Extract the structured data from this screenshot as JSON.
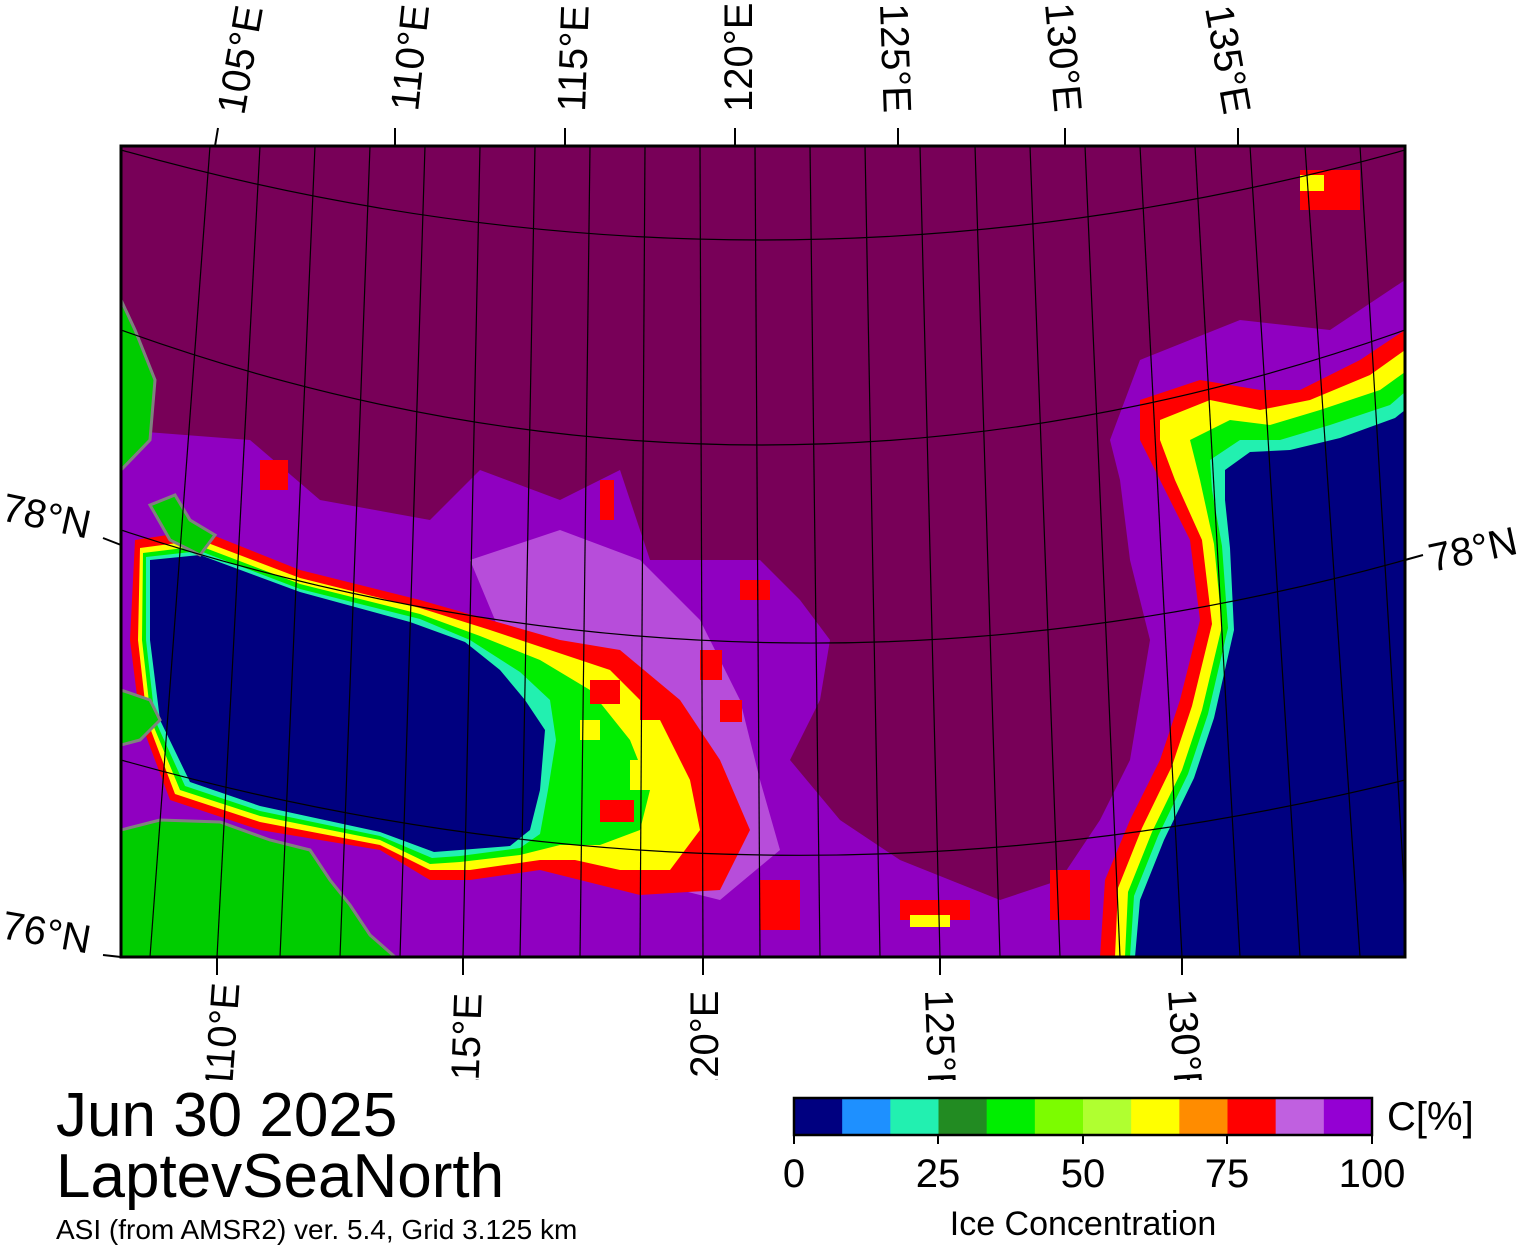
{
  "map": {
    "date": "Jun 30 2025",
    "region": "LaptevSeaNorth",
    "subtitle": "ASI (from AMSR2) ver. 5.4,  Grid 3.125 km",
    "top_lon_labels": [
      "105°E",
      "110°E",
      "115°E",
      "120°E",
      "125°E",
      "130°E",
      "135°E"
    ],
    "bottom_lon_labels": [
      "110°E",
      "115°E",
      "120°E",
      "125°E",
      "130°E"
    ],
    "left_lat_labels": [
      "78°N",
      "76°N"
    ],
    "right_lat_labels": [
      "78°N"
    ],
    "colors": {
      "open_water": "#000080",
      "high_concentration": "#780058",
      "land": "#00cc00",
      "land_edge": "#808080"
    }
  },
  "colorbar": {
    "title": "Ice Concentration",
    "unit": "C[%]",
    "ticks": [
      "0",
      "25",
      "50",
      "75",
      "100"
    ],
    "colors": [
      "#000080",
      "#1e90ff",
      "#22f0b0",
      "#228b22",
      "#00ee00",
      "#7cfc00",
      "#b0ff30",
      "#ffff00",
      "#ff8c00",
      "#ff0000",
      "#c060e0",
      "#9400d3"
    ]
  }
}
